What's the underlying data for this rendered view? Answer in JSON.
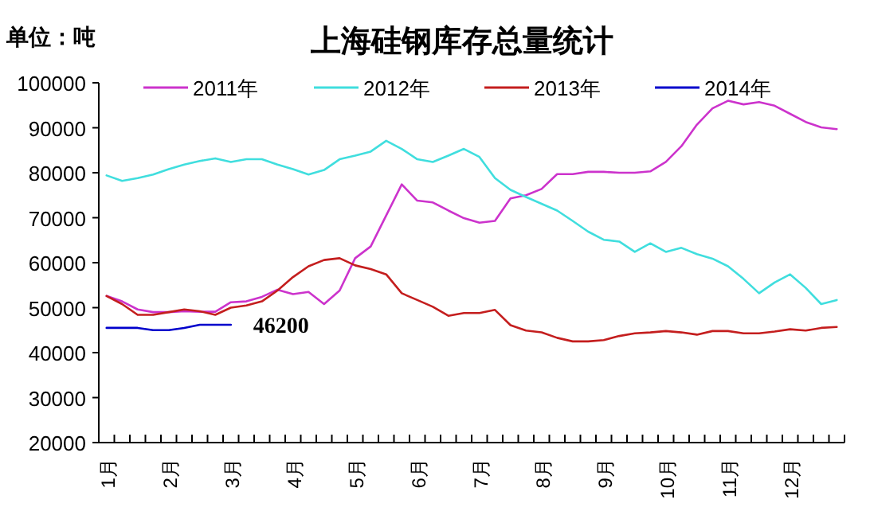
{
  "chart_data": {
    "type": "line",
    "title": "上海硅钢库存总量统计",
    "ylabel": "单位：吨",
    "categories": [
      "1月",
      null,
      null,
      null,
      "2月",
      null,
      null,
      null,
      "3月",
      null,
      null,
      null,
      "4月",
      null,
      null,
      null,
      "5月",
      null,
      null,
      null,
      "6月",
      null,
      null,
      null,
      "7月",
      null,
      null,
      null,
      "8月",
      null,
      null,
      null,
      "9月",
      null,
      null,
      null,
      "10月",
      null,
      null,
      null,
      "11月",
      null,
      null,
      null,
      "12月",
      null,
      null,
      null
    ],
    "ylim": [
      20000,
      100000
    ],
    "yticks": [
      20000,
      30000,
      40000,
      50000,
      60000,
      70000,
      80000,
      90000,
      100000
    ],
    "legend": "top",
    "grid": false,
    "marker": "none",
    "line_style": "solid",
    "series": [
      {
        "name": "2011年",
        "color": "#cc33cc",
        "values": [
          52600,
          51400,
          49600,
          49000,
          49000,
          49200,
          49100,
          49100,
          51200,
          51400,
          52400,
          54000,
          53000,
          53500,
          50800,
          53800,
          61000,
          63600,
          70500,
          77400,
          73800,
          73400,
          71600,
          69900,
          68900,
          69300,
          74300,
          75000,
          76400,
          79700,
          79700,
          80200,
          80200,
          80000,
          80000,
          80300,
          82400,
          85900,
          90700,
          94300,
          96000,
          95200,
          95700,
          94900,
          93100,
          91300,
          90100,
          89700
        ]
      },
      {
        "name": "2012年",
        "color": "#40dede",
        "values": [
          79400,
          78200,
          78800,
          79600,
          80800,
          81800,
          82600,
          83200,
          82400,
          83000,
          83000,
          81800,
          80800,
          79600,
          80600,
          83000,
          83800,
          84700,
          87100,
          85300,
          83000,
          82400,
          83800,
          85300,
          83500,
          78800,
          76200,
          74600,
          73100,
          71600,
          69300,
          66900,
          65100,
          64700,
          62400,
          64300,
          62400,
          63300,
          61900,
          60900,
          59200,
          56400,
          53200,
          55600,
          57400,
          54400,
          50800,
          51700
        ]
      },
      {
        "name": "2013年",
        "color": "#c41e1e",
        "values": [
          52600,
          50800,
          48400,
          48400,
          49000,
          49600,
          49200,
          48400,
          50000,
          50500,
          51400,
          53800,
          56800,
          59200,
          60600,
          61000,
          59400,
          58600,
          57400,
          53200,
          51700,
          50200,
          48200,
          48800,
          48800,
          49500,
          46100,
          44900,
          44500,
          43300,
          42500,
          42500,
          42800,
          43700,
          44300,
          44500,
          44800,
          44500,
          44000,
          44800,
          44800,
          44300,
          44300,
          44700,
          45200,
          44900,
          45500,
          45700
        ]
      },
      {
        "name": "2014年",
        "color": "#0000cc",
        "values": [
          45500,
          45500,
          45500,
          45000,
          45000,
          45500,
          46200,
          46200,
          46200,
          null,
          null,
          null,
          null,
          null,
          null,
          null,
          null,
          null,
          null,
          null,
          null,
          null,
          null,
          null,
          null,
          null,
          null,
          null,
          null,
          null,
          null,
          null,
          null,
          null,
          null,
          null,
          null,
          null,
          null,
          null,
          null,
          null,
          null,
          null,
          null,
          null,
          null,
          null
        ]
      }
    ],
    "annotations": [
      "46200"
    ]
  }
}
